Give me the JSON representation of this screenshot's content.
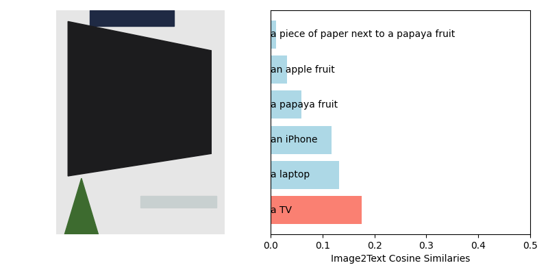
{
  "chart_data": {
    "type": "bar",
    "orientation": "horizontal",
    "categories": [
      "a piece of paper next to a papaya fruit",
      "an apple fruit",
      "a papaya fruit",
      "an iPhone",
      "a laptop",
      "a TV"
    ],
    "values": [
      0.01,
      0.032,
      0.06,
      0.117,
      0.132,
      0.175
    ],
    "colors": [
      "lightblue",
      "lightblue",
      "lightblue",
      "lightblue",
      "lightblue",
      "salmon"
    ],
    "x_label": "Image2Text Cosine Similaries",
    "xlim": [
      0,
      0.5
    ],
    "xticks": [
      {
        "value": 0,
        "label": "0.0"
      },
      0.1,
      0.2,
      0.3,
      0.4,
      0.5
    ],
    "tick_labels": "x",
    "grid": false
  }
}
